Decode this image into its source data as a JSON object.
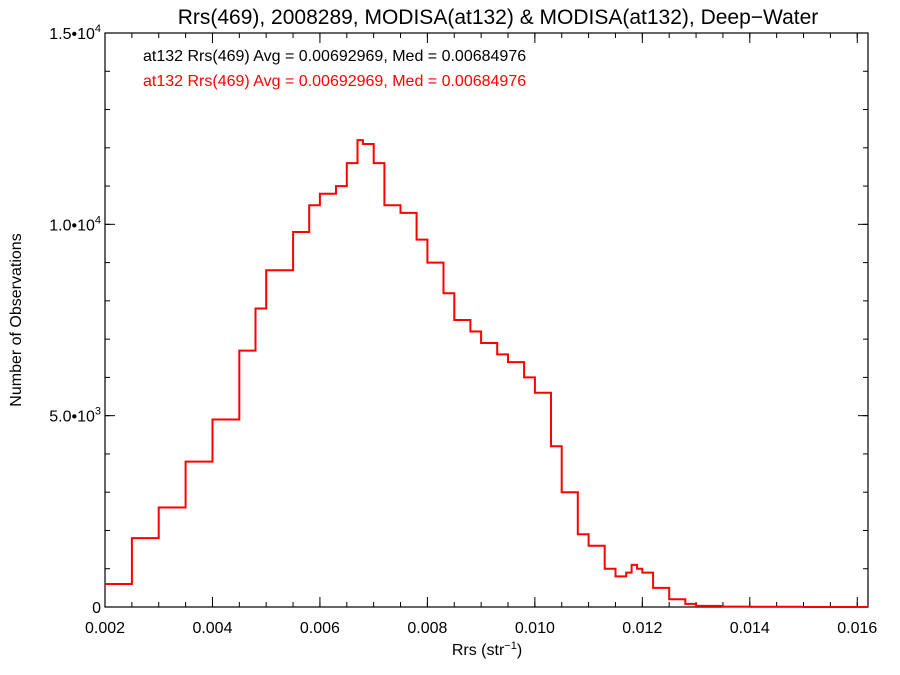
{
  "chart_data": {
    "type": "line",
    "title": "Rrs(469), 2008289, MODISA(at132) & MODISA(at132), Deep−Water",
    "xlabel_main": "Rrs (str",
    "xlabel_sup": "−1",
    "xlabel_end": ")",
    "ylabel": "Number of Observations",
    "xlim": [
      0.002,
      0.0162
    ],
    "ylim": [
      0,
      15000
    ],
    "x_ticks": [
      {
        "value": 0.002,
        "label": "0.002"
      },
      {
        "value": 0.004,
        "label": "0.004"
      },
      {
        "value": 0.006,
        "label": "0.006"
      },
      {
        "value": 0.008,
        "label": "0.008"
      },
      {
        "value": 0.01,
        "label": "0.010"
      },
      {
        "value": 0.012,
        "label": "0.012"
      },
      {
        "value": 0.014,
        "label": "0.014"
      },
      {
        "value": 0.016,
        "label": "0.016"
      }
    ],
    "y_ticks": [
      {
        "value": 0,
        "mant": "0",
        "exp": ""
      },
      {
        "value": 5000,
        "mant": "5.0•10",
        "exp": "3"
      },
      {
        "value": 10000,
        "mant": "1.0•10",
        "exp": "4"
      },
      {
        "value": 15000,
        "mant": "1.5•10",
        "exp": "4"
      }
    ],
    "annotations": [
      {
        "text": "at132 Rrs(469) Avg = 0.00692969, Med = 0.00684976",
        "color": "#000000"
      },
      {
        "text": "at132 Rrs(469) Avg = 0.00692969, Med = 0.00684976",
        "color": "#ff0000"
      }
    ],
    "series": [
      {
        "color": "#ff0000",
        "step": true,
        "x": [
          0.002,
          0.0025,
          0.003,
          0.0035,
          0.004,
          0.0045,
          0.0048,
          0.005,
          0.0055,
          0.0058,
          0.006,
          0.0063,
          0.0065,
          0.0067,
          0.0068,
          0.007,
          0.0072,
          0.0075,
          0.0078,
          0.008,
          0.0083,
          0.0085,
          0.0088,
          0.009,
          0.0093,
          0.0095,
          0.0098,
          0.01,
          0.0103,
          0.0105,
          0.0108,
          0.011,
          0.0113,
          0.0115,
          0.0117,
          0.0118,
          0.0119,
          0.012,
          0.0122,
          0.0125,
          0.0128,
          0.013,
          0.0135,
          0.014,
          0.015,
          0.0162
        ],
        "values": [
          600,
          1800,
          2600,
          3800,
          4900,
          6700,
          7800,
          8800,
          9800,
          10500,
          10800,
          11000,
          11600,
          12200,
          12100,
          11600,
          10500,
          10300,
          9600,
          9000,
          8200,
          7500,
          7200,
          6900,
          6600,
          6400,
          6000,
          5600,
          4200,
          3000,
          1900,
          1600,
          1000,
          800,
          900,
          1100,
          1000,
          900,
          500,
          200,
          80,
          30,
          10,
          5,
          0,
          0
        ]
      }
    ]
  }
}
